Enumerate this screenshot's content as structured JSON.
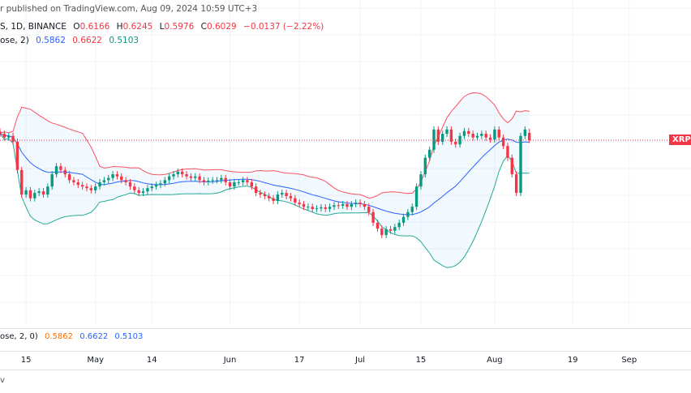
{
  "header": {
    "published": "r published on TradingView.com, Aug 09, 2024 10:59 UTC+3",
    "symbol_info": "S, 1D, BINANCE",
    "ohlc": {
      "o_label": "O",
      "o": "0.6166",
      "h_label": "H",
      "h": "0.6245",
      "l_label": "L",
      "l": "0.5976",
      "c_label": "C",
      "c": "0.6029",
      "change": "−0.0137 (−2.22%)"
    },
    "bb_legend": {
      "label": "ose, 2)",
      "basis": "0.5862",
      "upper": "0.6622",
      "lower": "0.5103"
    }
  },
  "indicator_pane": {
    "label": "ose, 2, 0)",
    "v1": "0.5862",
    "v2": "0.6622",
    "v3": "0.5103"
  },
  "price_label": "XRPUSDT",
  "footer": "v",
  "colors": {
    "up": "#089981",
    "down": "#f23645",
    "bb_upper": "#f7525f",
    "bb_lower": "#22ab94",
    "bb_basis": "#2962ff",
    "bb_fill": "#2196f3"
  },
  "chart_data": {
    "type": "candlestick",
    "interval": "1D",
    "first_date": "2024-04-09",
    "last_price": 0.6029,
    "last_candle": {
      "o": 0.6166,
      "h": 0.6245,
      "l": 0.5976,
      "c": 0.6029
    },
    "close": [
      0.615,
      0.608,
      0.611,
      0.6,
      0.547,
      0.501,
      0.509,
      0.494,
      0.504,
      0.507,
      0.501,
      0.516,
      0.539,
      0.554,
      0.547,
      0.539,
      0.528,
      0.524,
      0.519,
      0.516,
      0.513,
      0.509,
      0.516,
      0.524,
      0.528,
      0.532,
      0.539,
      0.535,
      0.528,
      0.524,
      0.516,
      0.509,
      0.504,
      0.507,
      0.513,
      0.516,
      0.519,
      0.522,
      0.528,
      0.535,
      0.539,
      0.544,
      0.539,
      0.535,
      0.532,
      0.535,
      0.528,
      0.524,
      0.527,
      0.528,
      0.528,
      0.532,
      0.524,
      0.516,
      0.524,
      0.524,
      0.528,
      0.524,
      0.516,
      0.504,
      0.501,
      0.498,
      0.494,
      0.489,
      0.501,
      0.504,
      0.498,
      0.494,
      0.486,
      0.483,
      0.478,
      0.478,
      0.474,
      0.475,
      0.477,
      0.474,
      0.478,
      0.481,
      0.48,
      0.483,
      0.478,
      0.483,
      0.486,
      0.483,
      0.478,
      0.468,
      0.448,
      0.437,
      0.425,
      0.436,
      0.433,
      0.44,
      0.448,
      0.459,
      0.468,
      0.478,
      0.516,
      0.539,
      0.57,
      0.585,
      0.623,
      0.6,
      0.615,
      0.623,
      0.6,
      0.595,
      0.611,
      0.62,
      0.615,
      0.608,
      0.611,
      0.615,
      0.608,
      0.604,
      0.623,
      0.608,
      0.592,
      0.57,
      0.539,
      0.504,
      0.611,
      0.623,
      0.6029
    ],
    "indicator": {
      "name": "Bollinger Bands",
      "length": 20,
      "mult": 2
    },
    "x_ticks": [
      {
        "label": "15",
        "date": "2024-04-15"
      },
      {
        "label": "May",
        "date": "2024-05-01"
      },
      {
        "label": "14",
        "date": "2024-05-14"
      },
      {
        "label": "Jun",
        "date": "2024-06-01"
      },
      {
        "label": "17",
        "date": "2024-06-17"
      },
      {
        "label": "Jul",
        "date": "2024-07-01"
      },
      {
        "label": "15",
        "date": "2024-07-15"
      },
      {
        "label": "Aug",
        "date": "2024-08-01"
      },
      {
        "label": "19",
        "date": "2024-08-19"
      },
      {
        "label": "Sep",
        "date": "2024-09-01"
      }
    ],
    "grid": true
  }
}
